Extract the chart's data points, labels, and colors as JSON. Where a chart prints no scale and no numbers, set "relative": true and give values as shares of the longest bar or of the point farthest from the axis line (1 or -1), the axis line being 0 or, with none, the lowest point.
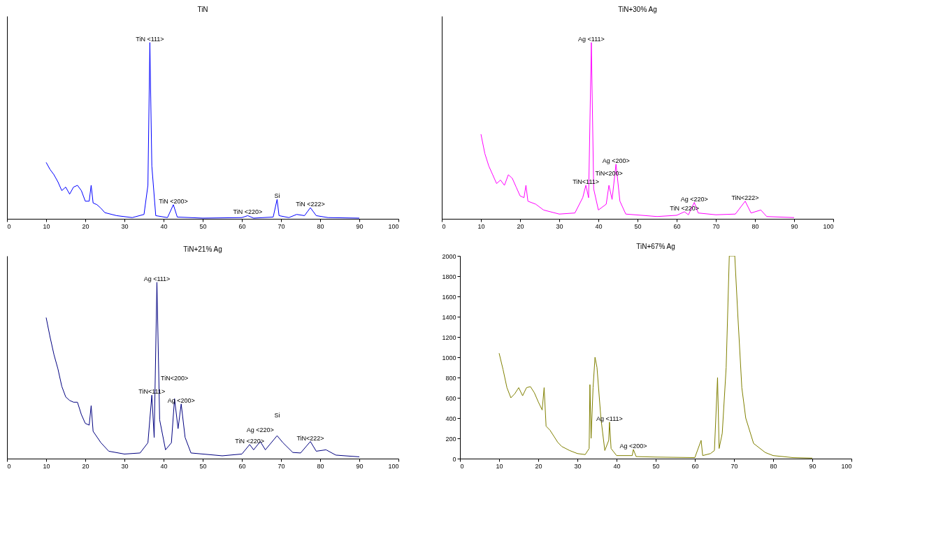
{
  "chart_data": [
    {
      "type": "line",
      "title": "TiN",
      "relative": true,
      "xlim": [
        0,
        100
      ],
      "xticks": [
        0,
        10,
        20,
        30,
        40,
        50,
        60,
        70,
        80,
        90,
        100
      ],
      "x": [
        10,
        11,
        12,
        13,
        14,
        15,
        16,
        17,
        18,
        19,
        20,
        21,
        21.5,
        22,
        23,
        24,
        25,
        28,
        32,
        35,
        36,
        36.5,
        37,
        38,
        41,
        42.5,
        43.5,
        50,
        60,
        61.5,
        63,
        68,
        69,
        69.5,
        72,
        74,
        76,
        77.5,
        79,
        82,
        90
      ],
      "series": [
        {
          "color": "#0000ff",
          "values": [
            0.32,
            0.28,
            0.25,
            0.21,
            0.16,
            0.18,
            0.14,
            0.18,
            0.19,
            0.16,
            0.1,
            0.1,
            0.19,
            0.09,
            0.08,
            0.06,
            0.035,
            0.018,
            0.007,
            0.025,
            0.19,
            1,
            0.3,
            0.018,
            0.007,
            0.08,
            0.01,
            0.004,
            0.007,
            0.018,
            0.004,
            0.01,
            0.11,
            0.018,
            0.007,
            0.025,
            0.018,
            0.063,
            0.018,
            0.007,
            0.004
          ]
        }
      ],
      "annotations": [
        {
          "text": "TiN <111>",
          "x": 36.5,
          "y": 1
        },
        {
          "text": "TiN <200>",
          "x": 42.5,
          "y": 0.08
        },
        {
          "text": "TiN <220>",
          "x": 61.5,
          "y": 0.018
        },
        {
          "text": "Si",
          "x": 69,
          "y": 0.11
        },
        {
          "text": "TiN <222>",
          "x": 77.5,
          "y": 0.063
        }
      ]
    },
    {
      "type": "line",
      "title": "TiN+30% Ag",
      "relative": true,
      "xlim": [
        0,
        100
      ],
      "xticks": [
        0,
        10,
        20,
        30,
        40,
        50,
        60,
        70,
        80,
        90,
        100
      ],
      "x": [
        10,
        11,
        12,
        13,
        14,
        15,
        16,
        17,
        18,
        19,
        20,
        21,
        21.5,
        22,
        24,
        26,
        30,
        34,
        36,
        36.8,
        37.5,
        38.2,
        38.8,
        40,
        42,
        42.7,
        43.5,
        44.5,
        45.5,
        47,
        55,
        60,
        62,
        63,
        64.5,
        65.5,
        70,
        75,
        77.5,
        79,
        81.5,
        83,
        90
      ],
      "series": [
        {
          "color": "#ff00ff",
          "values": [
            0.48,
            0.37,
            0.3,
            0.25,
            0.2,
            0.22,
            0.19,
            0.25,
            0.23,
            0.18,
            0.13,
            0.12,
            0.19,
            0.1,
            0.083,
            0.05,
            0.027,
            0.033,
            0.12,
            0.19,
            0.12,
            1,
            0.17,
            0.05,
            0.083,
            0.19,
            0.11,
            0.31,
            0.1,
            0.027,
            0.013,
            0.02,
            0.04,
            0.023,
            0.093,
            0.033,
            0.023,
            0.027,
            0.1,
            0.033,
            0.05,
            0.013,
            0.007
          ]
        }
      ],
      "annotations": [
        {
          "text": "Ag <111>",
          "x": 38.2,
          "y": 1
        },
        {
          "text": "TiN<111>",
          "x": 36.8,
          "y": 0.19
        },
        {
          "text": "TiN<200>",
          "x": 42.7,
          "y": 0.19
        },
        {
          "text": "Ag <200>",
          "x": 44.5,
          "y": 0.31
        },
        {
          "text": "TiN <220>",
          "x": 62,
          "y": 0.04
        },
        {
          "text": "Ag <220>",
          "x": 64.5,
          "y": 0.093
        },
        {
          "text": "TiN<222>",
          "x": 77.5,
          "y": 0.1
        }
      ]
    },
    {
      "type": "line",
      "title": "TiN+21% Ag",
      "relative": true,
      "xlim": [
        0,
        100
      ],
      "xticks": [
        0,
        10,
        20,
        30,
        40,
        50,
        60,
        70,
        80,
        90,
        100
      ],
      "x": [
        10,
        11,
        12,
        13,
        14,
        15,
        16,
        17,
        18,
        19,
        20,
        21,
        21.5,
        22,
        24,
        26,
        30,
        34,
        36,
        37,
        37.6,
        38.3,
        39,
        40.5,
        42,
        42.8,
        43.7,
        44.5,
        45.5,
        47,
        55,
        60,
        62,
        63,
        64.7,
        66,
        69,
        70.5,
        73,
        75,
        77.5,
        79,
        81.5,
        84,
        90
      ],
      "series": [
        {
          "color": "#000080",
          "values": [
            0.8,
            0.69,
            0.59,
            0.51,
            0.41,
            0.35,
            0.33,
            0.32,
            0.32,
            0.25,
            0.2,
            0.19,
            0.3,
            0.155,
            0.09,
            0.042,
            0.026,
            0.032,
            0.09,
            0.36,
            0.12,
            1,
            0.22,
            0.05,
            0.09,
            0.34,
            0.17,
            0.31,
            0.12,
            0.032,
            0.016,
            0.026,
            0.08,
            0.05,
            0.097,
            0.05,
            0.13,
            0.09,
            0.035,
            0.032,
            0.097,
            0.042,
            0.05,
            0.02,
            0.01
          ]
        }
      ],
      "annotations": [
        {
          "text": "Ag <111>",
          "x": 38.3,
          "y": 1
        },
        {
          "text": "TiN<111>",
          "x": 37,
          "y": 0.36
        },
        {
          "text": "TiN<200>",
          "x": 42.8,
          "y": 0.34
        },
        {
          "text": "Ag <200>",
          "x": 44.5,
          "y": 0.31
        },
        {
          "text": "TiN <220>",
          "x": 62,
          "y": 0.08
        },
        {
          "text": "Ag <220>",
          "x": 64.7,
          "y": 0.097
        },
        {
          "text": "Si",
          "x": 69,
          "y": 0.13
        },
        {
          "text": "TiN<222>",
          "x": 77.5,
          "y": 0.097
        }
      ]
    },
    {
      "type": "line",
      "title": "TiN+67% Ag",
      "xlim": [
        0,
        100
      ],
      "xticks": [
        0,
        10,
        20,
        30,
        40,
        50,
        60,
        70,
        80,
        90,
        100
      ],
      "ylim": [
        0,
        2000
      ],
      "yticks": [
        0,
        200,
        400,
        600,
        800,
        1000,
        1200,
        1400,
        1600,
        1800,
        2000
      ],
      "x": [
        10,
        11,
        12,
        13,
        14,
        15,
        16,
        17,
        18,
        19,
        20,
        21,
        21.5,
        22,
        23,
        24,
        25,
        26,
        28,
        30,
        32,
        33,
        33.2,
        33.5,
        34,
        34.5,
        35,
        36,
        37,
        38,
        38.2,
        38.6,
        40,
        44,
        44.3,
        45,
        50,
        60,
        61.6,
        62,
        64,
        65,
        65.8,
        66.2,
        67,
        68,
        68.8,
        70.2,
        71,
        72,
        73,
        75,
        78,
        80,
        85,
        90
      ],
      "series": [
        {
          "color": "#808000",
          "values": [
            1040,
            880,
            700,
            600,
            640,
            700,
            620,
            700,
            710,
            650,
            560,
            480,
            700,
            320,
            280,
            220,
            160,
            120,
            80,
            50,
            40,
            100,
            730,
            200,
            700,
            1000,
            900,
            400,
            80,
            180,
            360,
            100,
            30,
            30,
            90,
            20,
            15,
            10,
            180,
            30,
            50,
            80,
            800,
            100,
            250,
            900,
            2000,
            2000,
            1400,
            700,
            400,
            150,
            60,
            30,
            10,
            5
          ]
        }
      ],
      "annotations": [
        {
          "text": "Ag <111>",
          "x": 38.2,
          "y": 360
        },
        {
          "text": "Ag <200>",
          "x": 44.3,
          "y": 90
        }
      ]
    }
  ]
}
